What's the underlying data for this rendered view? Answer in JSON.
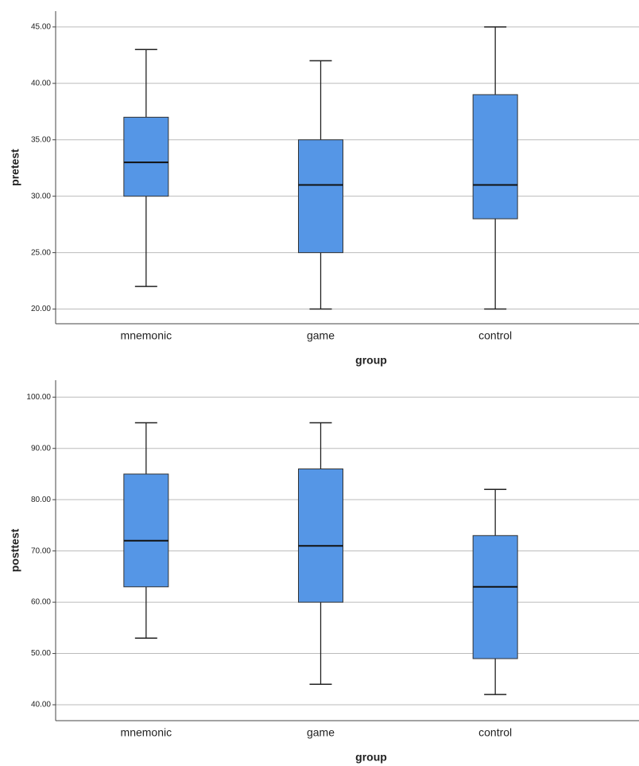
{
  "chart_data": [
    {
      "type": "box",
      "x_label": "group",
      "y_label": "pretest",
      "categories": [
        "mnemonic",
        "game",
        "control"
      ],
      "min": [
        22,
        20,
        20
      ],
      "q1": [
        30,
        25,
        28
      ],
      "median": [
        33,
        31,
        31
      ],
      "q3": [
        37,
        35,
        39
      ],
      "max": [
        43,
        42,
        45
      ],
      "color": "#5596e6",
      "ylim": [
        18.7,
        46.4
      ],
      "yticks": [
        {
          "value": 20,
          "label": "20.00"
        },
        {
          "value": 25,
          "label": "25.00"
        },
        {
          "value": 30,
          "label": "30.00"
        },
        {
          "value": 35,
          "label": "35.00"
        },
        {
          "value": 40,
          "label": "40.00"
        },
        {
          "value": 45,
          "label": "45.00"
        }
      ],
      "grid": true
    },
    {
      "type": "box",
      "x_label": "group",
      "y_label": "posttest",
      "categories": [
        "mnemonic",
        "game",
        "control"
      ],
      "min": [
        53,
        44,
        42
      ],
      "q1": [
        63,
        60,
        49
      ],
      "median": [
        72,
        71,
        63
      ],
      "q3": [
        85,
        86,
        73
      ],
      "max": [
        95,
        95,
        82
      ],
      "color": "#5596e6",
      "ylim": [
        36.9,
        103.3
      ],
      "yticks": [
        {
          "value": 40,
          "label": "40.00"
        },
        {
          "value": 50,
          "label": "50.00"
        },
        {
          "value": 60,
          "label": "60.00"
        },
        {
          "value": 70,
          "label": "70.00"
        },
        {
          "value": 80,
          "label": "80.00"
        },
        {
          "value": 90,
          "label": "90.00"
        },
        {
          "value": 100,
          "label": "100.00"
        }
      ],
      "grid": true
    }
  ]
}
